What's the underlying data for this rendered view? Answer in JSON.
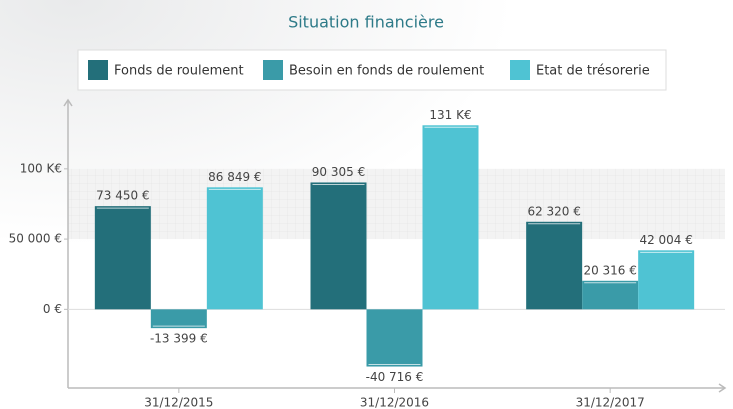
{
  "chart_data": {
    "type": "bar",
    "title": "Situation financière",
    "categories": [
      "31/12/2015",
      "31/12/2016",
      "31/12/2017"
    ],
    "series": [
      {
        "name": "Fonds de roulement",
        "color": "#236f7a",
        "values": [
          73450,
          90305,
          62320
        ],
        "value_labels": [
          "73 450 €",
          "90 305 €",
          "62 320 €"
        ]
      },
      {
        "name": "Besoin en fonds de roulement",
        "color": "#3a9ba8",
        "values": [
          -13399,
          -40716,
          20316
        ],
        "value_labels": [
          "-13 399 €",
          "-40 716 €",
          "20 316 €"
        ]
      },
      {
        "name": "Etat de trésorerie",
        "color": "#4fc3d3",
        "values": [
          86849,
          131000,
          42004
        ],
        "value_labels": [
          "86 849 €",
          "131 K€",
          "42 004 €"
        ]
      }
    ],
    "ylim": [
      -56000,
      149000
    ],
    "yticks": [
      {
        "value": 0,
        "label": "0 €"
      },
      {
        "value": 50000,
        "label": "50 000 €"
      },
      {
        "value": 100000,
        "label": "100 K€"
      }
    ],
    "legend": "top"
  }
}
